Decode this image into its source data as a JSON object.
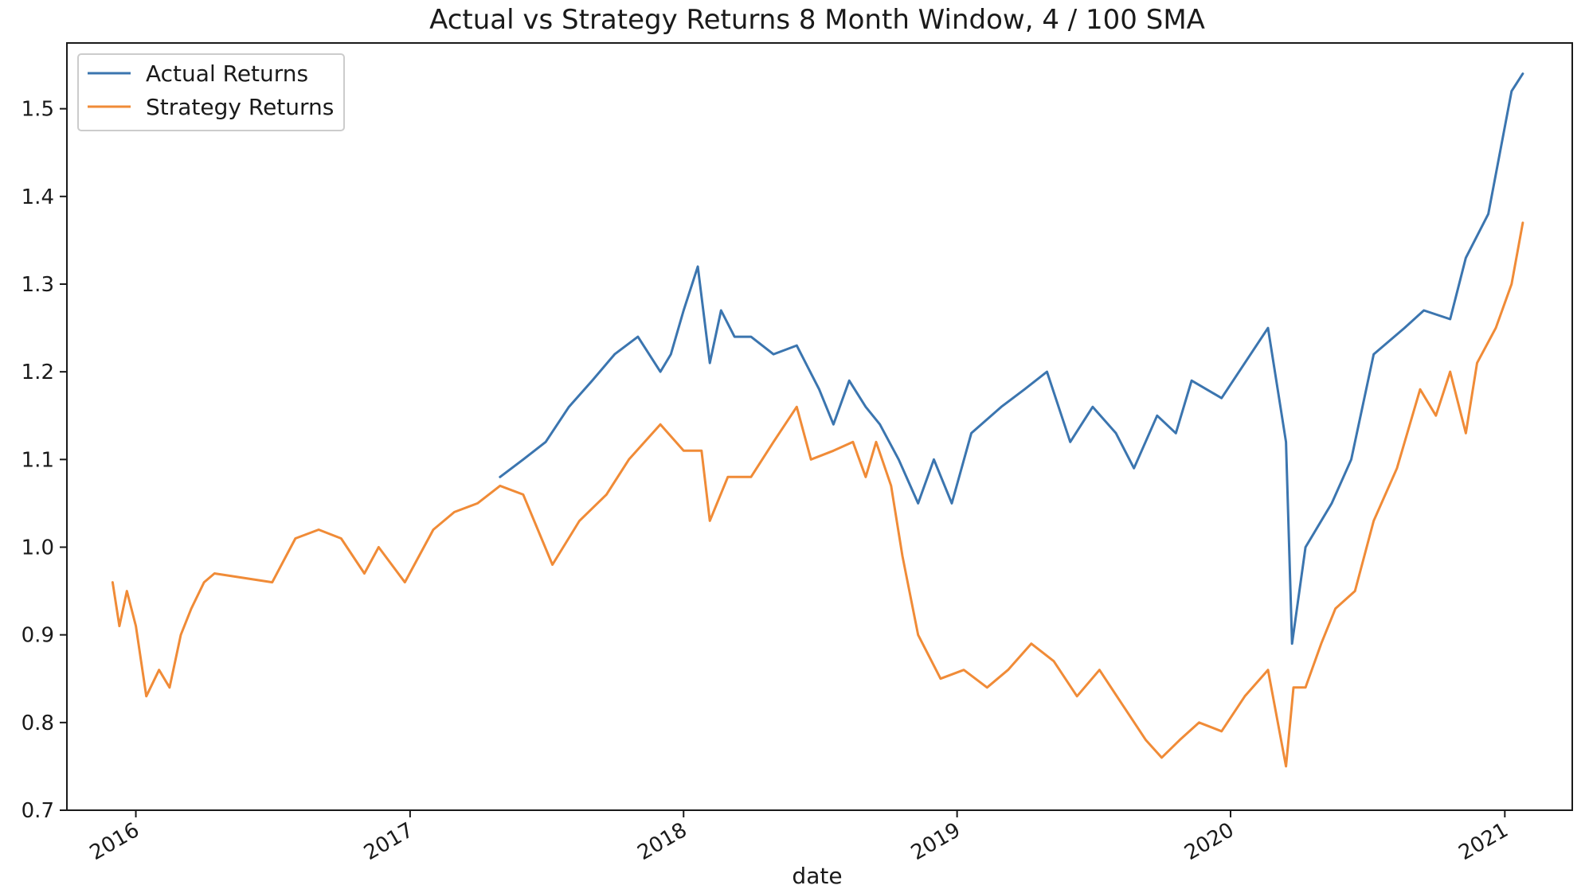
{
  "chart_data": {
    "type": "line",
    "title": "Actual vs Strategy Returns 8 Month Window, 4 / 100 SMA",
    "xlabel": "date",
    "ylabel": "",
    "xlim": [
      "2015-10-01",
      "2021-04-01"
    ],
    "ylim": [
      0.7,
      1.575
    ],
    "x_ticks": [
      "2016-01-01",
      "2017-01-01",
      "2018-01-01",
      "2019-01-01",
      "2020-01-01",
      "2021-01-01"
    ],
    "x_tick_labels": [
      "2016",
      "2017",
      "2018",
      "2019",
      "2020",
      "2021"
    ],
    "y_ticks": [
      0.7,
      0.8,
      0.9,
      1.0,
      1.1,
      1.2,
      1.3,
      1.4,
      1.5
    ],
    "y_tick_labels": [
      "0.7",
      "0.8",
      "0.9",
      "1.0",
      "1.1",
      "1.2",
      "1.3",
      "1.4",
      "1.5"
    ],
    "grid": false,
    "legend_position": "top-left",
    "series": [
      {
        "name": "Actual Returns",
        "color": "#3b75af",
        "points": [
          [
            "2017-05-01",
            1.08
          ],
          [
            "2017-06-01",
            1.1
          ],
          [
            "2017-07-01",
            1.12
          ],
          [
            "2017-08-01",
            1.16
          ],
          [
            "2017-09-01",
            1.19
          ],
          [
            "2017-10-01",
            1.22
          ],
          [
            "2017-11-01",
            1.24
          ],
          [
            "2017-12-01",
            1.2
          ],
          [
            "2017-12-15",
            1.22
          ],
          [
            "2018-01-01",
            1.27
          ],
          [
            "2018-01-20",
            1.32
          ],
          [
            "2018-02-05",
            1.21
          ],
          [
            "2018-02-20",
            1.27
          ],
          [
            "2018-03-10",
            1.24
          ],
          [
            "2018-04-01",
            1.24
          ],
          [
            "2018-05-01",
            1.22
          ],
          [
            "2018-06-01",
            1.23
          ],
          [
            "2018-07-01",
            1.18
          ],
          [
            "2018-07-20",
            1.14
          ],
          [
            "2018-08-10",
            1.19
          ],
          [
            "2018-09-01",
            1.16
          ],
          [
            "2018-09-20",
            1.14
          ],
          [
            "2018-10-15",
            1.1
          ],
          [
            "2018-11-10",
            1.05
          ],
          [
            "2018-12-01",
            1.1
          ],
          [
            "2018-12-25",
            1.05
          ],
          [
            "2019-01-20",
            1.13
          ],
          [
            "2019-03-01",
            1.16
          ],
          [
            "2019-04-01",
            1.18
          ],
          [
            "2019-05-01",
            1.2
          ],
          [
            "2019-06-01",
            1.12
          ],
          [
            "2019-07-01",
            1.16
          ],
          [
            "2019-08-01",
            1.13
          ],
          [
            "2019-08-25",
            1.09
          ],
          [
            "2019-09-25",
            1.15
          ],
          [
            "2019-10-20",
            1.13
          ],
          [
            "2019-11-10",
            1.19
          ],
          [
            "2019-12-20",
            1.17
          ],
          [
            "2020-02-20",
            1.25
          ],
          [
            "2020-03-15",
            1.12
          ],
          [
            "2020-03-23",
            0.89
          ],
          [
            "2020-04-10",
            1.0
          ],
          [
            "2020-05-15",
            1.05
          ],
          [
            "2020-06-10",
            1.1
          ],
          [
            "2020-07-10",
            1.22
          ],
          [
            "2020-08-20",
            1.25
          ],
          [
            "2020-09-15",
            1.27
          ],
          [
            "2020-10-20",
            1.26
          ],
          [
            "2020-11-10",
            1.33
          ],
          [
            "2020-12-10",
            1.38
          ],
          [
            "2021-01-10",
            1.52
          ],
          [
            "2021-01-25",
            1.54
          ]
        ]
      },
      {
        "name": "Strategy Returns",
        "color": "#f08b37",
        "points": [
          [
            "2015-12-01",
            0.96
          ],
          [
            "2015-12-10",
            0.91
          ],
          [
            "2015-12-20",
            0.95
          ],
          [
            "2016-01-01",
            0.91
          ],
          [
            "2016-01-15",
            0.83
          ],
          [
            "2016-02-01",
            0.86
          ],
          [
            "2016-02-15",
            0.84
          ],
          [
            "2016-03-01",
            0.9
          ],
          [
            "2016-03-15",
            0.93
          ],
          [
            "2016-04-01",
            0.96
          ],
          [
            "2016-04-15",
            0.97
          ],
          [
            "2016-07-01",
            0.96
          ],
          [
            "2016-08-01",
            1.01
          ],
          [
            "2016-09-01",
            1.02
          ],
          [
            "2016-10-01",
            1.01
          ],
          [
            "2016-11-01",
            0.97
          ],
          [
            "2016-11-20",
            1.0
          ],
          [
            "2016-12-25",
            0.96
          ],
          [
            "2017-02-01",
            1.02
          ],
          [
            "2017-03-01",
            1.04
          ],
          [
            "2017-04-01",
            1.05
          ],
          [
            "2017-05-01",
            1.07
          ],
          [
            "2017-06-01",
            1.06
          ],
          [
            "2017-07-10",
            0.98
          ],
          [
            "2017-08-15",
            1.03
          ],
          [
            "2017-09-20",
            1.06
          ],
          [
            "2017-10-20",
            1.1
          ],
          [
            "2017-12-01",
            1.14
          ],
          [
            "2018-01-01",
            1.11
          ],
          [
            "2018-01-25",
            1.11
          ],
          [
            "2018-02-05",
            1.03
          ],
          [
            "2018-03-01",
            1.08
          ],
          [
            "2018-04-01",
            1.08
          ],
          [
            "2018-05-01",
            1.12
          ],
          [
            "2018-06-01",
            1.16
          ],
          [
            "2018-06-20",
            1.1
          ],
          [
            "2018-07-20",
            1.11
          ],
          [
            "2018-08-15",
            1.12
          ],
          [
            "2018-09-01",
            1.08
          ],
          [
            "2018-09-15",
            1.12
          ],
          [
            "2018-10-05",
            1.07
          ],
          [
            "2018-10-20",
            0.99
          ],
          [
            "2018-11-10",
            0.9
          ],
          [
            "2018-12-10",
            0.85
          ],
          [
            "2019-01-10",
            0.86
          ],
          [
            "2019-02-10",
            0.84
          ],
          [
            "2019-03-10",
            0.86
          ],
          [
            "2019-04-10",
            0.89
          ],
          [
            "2019-05-10",
            0.87
          ],
          [
            "2019-06-10",
            0.83
          ],
          [
            "2019-07-10",
            0.86
          ],
          [
            "2019-08-10",
            0.82
          ],
          [
            "2019-09-10",
            0.78
          ],
          [
            "2019-10-01",
            0.76
          ],
          [
            "2019-10-25",
            0.78
          ],
          [
            "2019-11-20",
            0.8
          ],
          [
            "2019-12-20",
            0.79
          ],
          [
            "2020-01-20",
            0.83
          ],
          [
            "2020-02-20",
            0.86
          ],
          [
            "2020-03-15",
            0.75
          ],
          [
            "2020-03-25",
            0.84
          ],
          [
            "2020-04-10",
            0.84
          ],
          [
            "2020-05-01",
            0.89
          ],
          [
            "2020-05-20",
            0.93
          ],
          [
            "2020-06-15",
            0.95
          ],
          [
            "2020-07-10",
            1.03
          ],
          [
            "2020-08-10",
            1.09
          ],
          [
            "2020-09-10",
            1.18
          ],
          [
            "2020-10-01",
            1.15
          ],
          [
            "2020-10-20",
            1.2
          ],
          [
            "2020-11-10",
            1.13
          ],
          [
            "2020-11-25",
            1.21
          ],
          [
            "2020-12-20",
            1.25
          ],
          [
            "2021-01-10",
            1.3
          ],
          [
            "2021-01-25",
            1.37
          ]
        ]
      }
    ]
  }
}
